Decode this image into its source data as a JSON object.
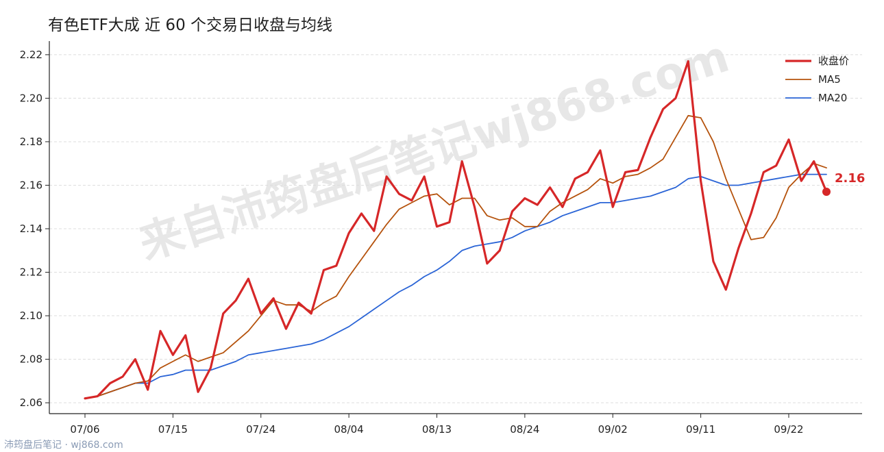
{
  "colors": {
    "close": "#d62728",
    "ma5": "#b5520c",
    "ma20": "#2a64d6",
    "grid": "#dddddd",
    "axis": "#222222"
  },
  "footer": {
    "text": "沛筠盘后笔记 · wj868.com"
  },
  "watermark": {
    "text": "来自沛筠盘后笔记wj868.com"
  },
  "chart_data": {
    "type": "line",
    "title": "有色ETF大成 近 60 个交易日收盘与均线",
    "xlabel": "",
    "ylabel": "",
    "ylim": [
      2.055,
      2.225
    ],
    "yticks": [
      2.06,
      2.08,
      2.1,
      2.12,
      2.14,
      2.16,
      2.18,
      2.2,
      2.22
    ],
    "ytick_labels": [
      "2.06",
      "2.08",
      "2.10",
      "2.12",
      "2.14",
      "2.16",
      "2.18",
      "2.20",
      "2.22"
    ],
    "xtick_labels": [
      "07/06",
      "07/15",
      "07/24",
      "08/04",
      "08/13",
      "08/24",
      "09/02",
      "09/11",
      "09/22"
    ],
    "xtick_indices": [
      0,
      7,
      14,
      21,
      28,
      35,
      42,
      49,
      56
    ],
    "grid": "horizontal",
    "legend": "top-right",
    "end_label": "2.16",
    "x_count": 60,
    "series": [
      {
        "name": "收盘价",
        "start": 0,
        "values": [
          2.062,
          2.063,
          2.069,
          2.072,
          2.08,
          2.066,
          2.093,
          2.082,
          2.091,
          2.065,
          2.076,
          2.101,
          2.107,
          2.117,
          2.101,
          2.108,
          2.094,
          2.106,
          2.101,
          2.121,
          2.123,
          2.138,
          2.147,
          2.139,
          2.164,
          2.156,
          2.153,
          2.164,
          2.141,
          2.143,
          2.171,
          2.15,
          2.124,
          2.13,
          2.148,
          2.154,
          2.151,
          2.159,
          2.15,
          2.163,
          2.166,
          2.176,
          2.15,
          2.166,
          2.167,
          2.182,
          2.195,
          2.2,
          2.217,
          2.162,
          2.125,
          2.112,
          2.131,
          2.147,
          2.166,
          2.169,
          2.181,
          2.162,
          2.171,
          2.157
        ]
      },
      {
        "name": "MA5",
        "start": 0,
        "values": [
          2.062,
          2.063,
          2.065,
          2.067,
          2.069,
          2.07,
          2.076,
          2.079,
          2.082,
          2.079,
          2.081,
          2.083,
          2.088,
          2.093,
          2.1,
          2.107,
          2.105,
          2.105,
          2.102,
          2.106,
          2.109,
          2.118,
          2.126,
          2.134,
          2.142,
          2.149,
          2.152,
          2.155,
          2.156,
          2.151,
          2.154,
          2.154,
          2.146,
          2.144,
          2.145,
          2.141,
          2.141,
          2.148,
          2.152,
          2.155,
          2.158,
          2.163,
          2.161,
          2.164,
          2.165,
          2.168,
          2.172,
          2.182,
          2.192,
          2.191,
          2.18,
          2.163,
          2.149,
          2.135,
          2.136,
          2.145,
          2.159,
          2.165,
          2.17,
          2.168
        ]
      },
      {
        "name": "MA20",
        "start": 0,
        "values": [
          2.062,
          2.063,
          2.065,
          2.067,
          2.069,
          2.069,
          2.072,
          2.073,
          2.075,
          2.075,
          2.075,
          2.077,
          2.079,
          2.082,
          2.083,
          2.084,
          2.085,
          2.086,
          2.087,
          2.089,
          2.092,
          2.095,
          2.099,
          2.103,
          2.107,
          2.111,
          2.114,
          2.118,
          2.121,
          2.125,
          2.13,
          2.132,
          2.133,
          2.134,
          2.136,
          2.139,
          2.141,
          2.143,
          2.146,
          2.148,
          2.15,
          2.152,
          2.152,
          2.153,
          2.154,
          2.155,
          2.157,
          2.159,
          2.163,
          2.164,
          2.162,
          2.16,
          2.16,
          2.161,
          2.162,
          2.163,
          2.164,
          2.165,
          2.165,
          2.165
        ]
      }
    ]
  }
}
